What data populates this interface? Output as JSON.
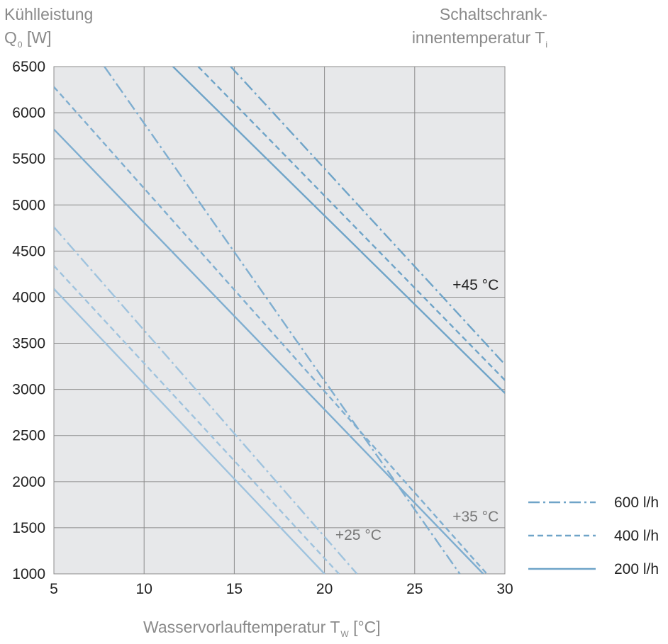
{
  "chart_data": {
    "type": "line",
    "ylabel_line1": "Kühlleistung",
    "ylabel_symbol": "Q",
    "ylabel_sub": "0",
    "ylabel_unit": " [W]",
    "temp_label_line1": "Schaltschrank-",
    "temp_label_line2": "innentemperatur T",
    "temp_label_sub": "i",
    "xlabel_main": "Wasservorlauftemperatur T",
    "xlabel_sub": "W",
    "xlabel_unit": " [°C]",
    "xlim": [
      5,
      30
    ],
    "ylim": [
      1000,
      6500
    ],
    "xticks": [
      5,
      10,
      15,
      20,
      25,
      30
    ],
    "yticks": [
      1000,
      1500,
      2000,
      2500,
      3000,
      3500,
      4000,
      4500,
      5000,
      5500,
      6000,
      6500
    ],
    "grid": true,
    "legend_position": "right",
    "legend": [
      {
        "label": "600 l/h",
        "style": "dashdot"
      },
      {
        "label": "400 l/h",
        "style": "dashed"
      },
      {
        "label": "200 l/h",
        "style": "solid"
      }
    ],
    "annotations": [
      {
        "text": "+45 °C",
        "x": 27.1,
        "y": 4080,
        "color": "#222222"
      },
      {
        "text": "+35 °C",
        "x": 27.1,
        "y": 1570,
        "color": "#777777"
      },
      {
        "text": "+25 °C",
        "x": 20.6,
        "y": 1370,
        "color": "#777777"
      }
    ],
    "series": [
      {
        "group": "+45 °C",
        "flow": "600 l/h",
        "style": "dashdot",
        "color": "#6fa4c8",
        "x": [
          14.8,
          30
        ],
        "y": [
          6500,
          3270
        ]
      },
      {
        "group": "+45 °C",
        "flow": "400 l/h",
        "style": "dashed",
        "color": "#6fa4c8",
        "x": [
          13.0,
          30
        ],
        "y": [
          6500,
          3100
        ]
      },
      {
        "group": "+45 °C",
        "flow": "200 l/h",
        "style": "solid",
        "color": "#6fa4c8",
        "x": [
          11.6,
          30
        ],
        "y": [
          6500,
          2960
        ]
      },
      {
        "group": "+35 °C",
        "flow": "600 l/h",
        "style": "dashdot",
        "color": "#7faed0",
        "x": [
          7.8,
          27.5
        ],
        "y": [
          6500,
          1000
        ]
      },
      {
        "group": "+35 °C",
        "flow": "400 l/h",
        "style": "dashed",
        "color": "#7faed0",
        "x": [
          5,
          29.0
        ],
        "y": [
          6280,
          1000
        ]
      },
      {
        "group": "+35 °C",
        "flow": "200 l/h",
        "style": "solid",
        "color": "#7faed0",
        "x": [
          5,
          28.8
        ],
        "y": [
          5820,
          1000
        ]
      },
      {
        "group": "+25 °C",
        "flow": "600 l/h",
        "style": "dashdot",
        "color": "#9fc3de",
        "x": [
          5,
          21.8
        ],
        "y": [
          4760,
          1000
        ]
      },
      {
        "group": "+25 °C",
        "flow": "400 l/h",
        "style": "dashed",
        "color": "#9fc3de",
        "x": [
          5,
          20.8
        ],
        "y": [
          4340,
          1000
        ]
      },
      {
        "group": "+25 °C",
        "flow": "200 l/h",
        "style": "solid",
        "color": "#9fc3de",
        "x": [
          5,
          20.0
        ],
        "y": [
          4090,
          1000
        ]
      }
    ]
  },
  "colors": {
    "plot_background": "#e7e8ea",
    "grid": "#8c8c8c",
    "legend_line": "#6fa4c8"
  }
}
